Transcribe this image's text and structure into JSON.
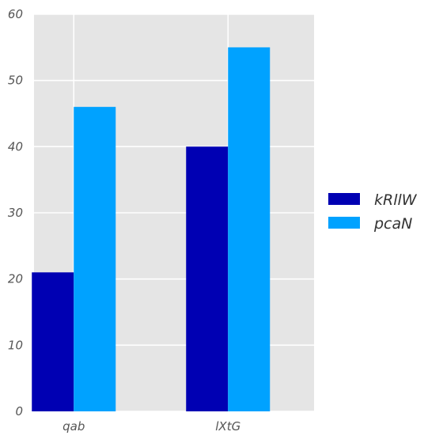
{
  "chart_data": {
    "type": "bar",
    "categories": [
      "qab",
      "lXtG"
    ],
    "series": [
      {
        "name": "kRllW",
        "values": [
          21,
          40
        ],
        "color": "#0000b3"
      },
      {
        "name": "pcaN",
        "values": [
          46,
          55
        ],
        "color": "#00a2ff"
      }
    ],
    "ylim": [
      0,
      60
    ],
    "yticks": [
      0,
      10,
      20,
      30,
      40,
      50,
      60
    ],
    "grid": true,
    "legend_position": "right",
    "plot_background": "#e5e5e5",
    "grid_color": "#ffffff"
  }
}
